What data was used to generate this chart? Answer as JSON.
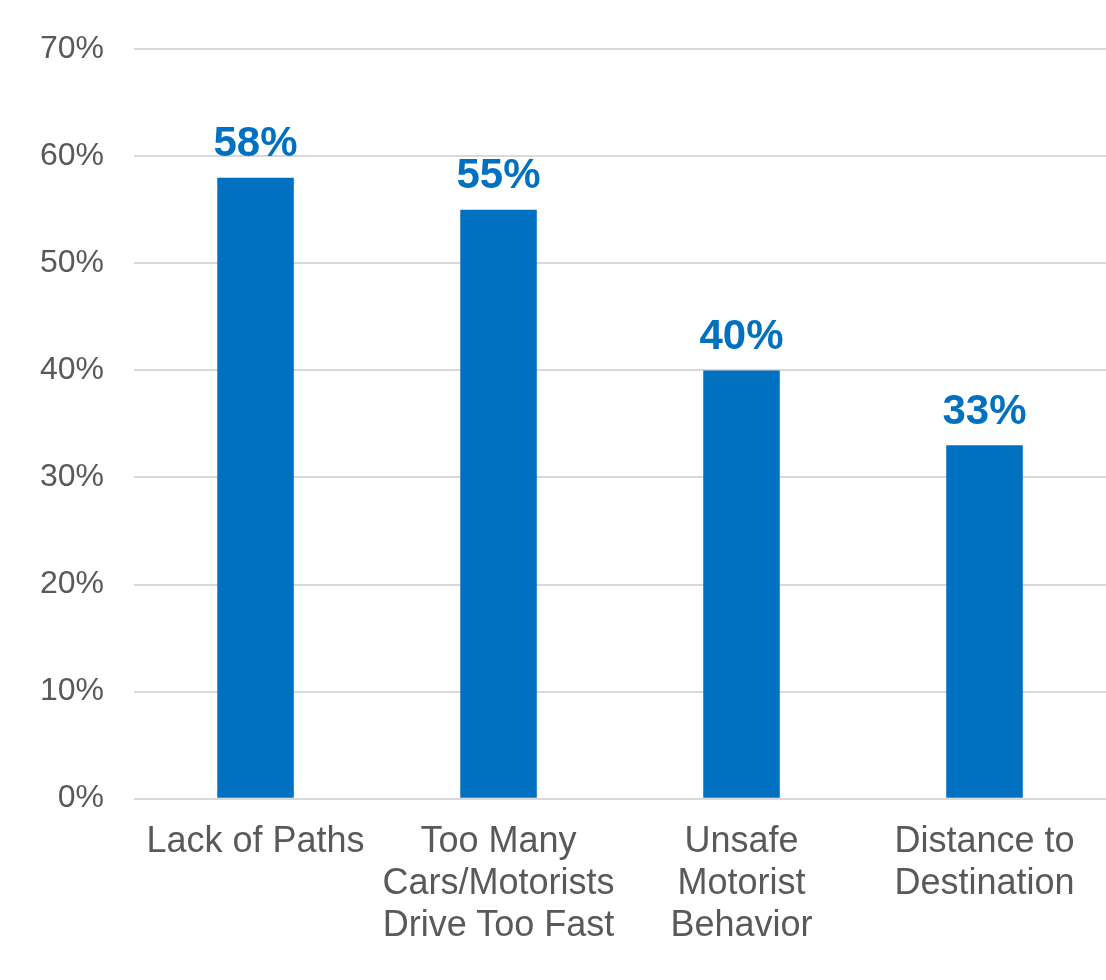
{
  "chart_data": {
    "type": "bar",
    "categories": [
      "Lack of Paths",
      "Too Many Cars/Motorists Drive Too Fast",
      "Unsafe Motorist Behavior",
      "Distance to Destination"
    ],
    "values": [
      58,
      55,
      40,
      33
    ],
    "color": "#0070c0",
    "value_labels": [
      "58%",
      "55%",
      "40%",
      "33%"
    ],
    "ylim": [
      0,
      70
    ],
    "yticks": [
      {
        "value": 0,
        "label": "0%"
      },
      {
        "value": 10,
        "label": "10%"
      },
      {
        "value": 20,
        "label": "20%"
      },
      {
        "value": 30,
        "label": "30%"
      },
      {
        "value": 40,
        "label": "40%"
      },
      {
        "value": 50,
        "label": "50%"
      },
      {
        "value": 60,
        "label": "60%"
      },
      {
        "value": 70,
        "label": "70%"
      }
    ],
    "grid": "y"
  }
}
